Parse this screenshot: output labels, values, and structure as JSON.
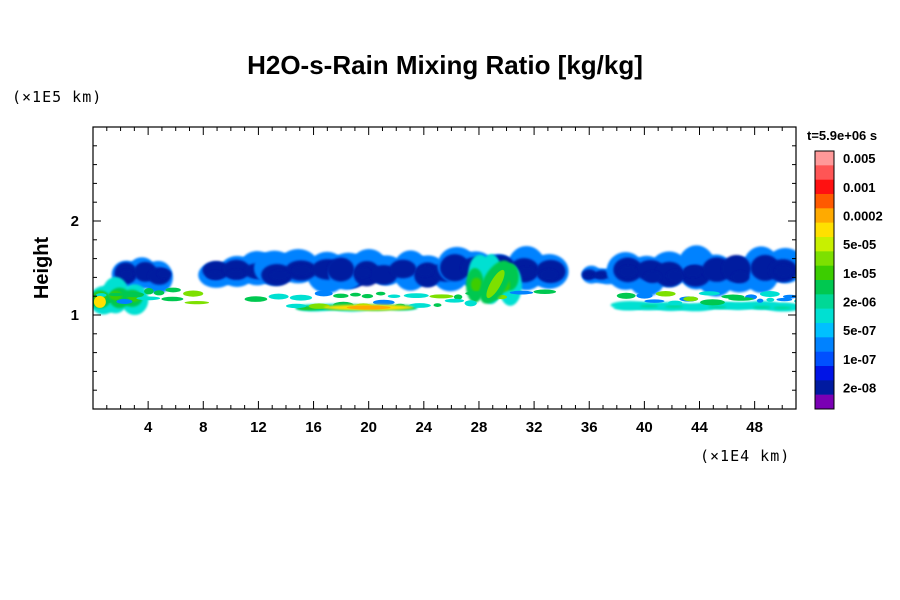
{
  "chart_data": {
    "type": "heatmap",
    "title": "H2O-s-Rain Mixing Ratio [kg/kg]",
    "ylabel": "Height",
    "x_unit": "(×1E4 km)",
    "y_unit": "(×1E5 km)",
    "time_label": "t=5.9e+06 s",
    "x_ticks": [
      "4",
      "8",
      "12",
      "16",
      "20",
      "24",
      "28",
      "32",
      "36",
      "40",
      "44",
      "48"
    ],
    "x_tick_values": [
      4,
      8,
      12,
      16,
      20,
      24,
      28,
      32,
      36,
      40,
      44,
      48
    ],
    "y_ticks": [
      "1",
      "2"
    ],
    "y_tick_values": [
      1,
      2
    ],
    "xlim": [
      0,
      51
    ],
    "ylim": [
      0,
      3
    ],
    "colorbar": {
      "labels": [
        "0.005",
        "0.001",
        "0.0002",
        "5e-05",
        "1e-05",
        "2e-06",
        "5e-07",
        "1e-07",
        "2e-08"
      ],
      "colors_top_to_bottom": [
        "#ff9999",
        "#ff5555",
        "#ff1111",
        "#ff5a00",
        "#ffaa00",
        "#ffe000",
        "#c8f000",
        "#7de000",
        "#3ccd00",
        "#00c850",
        "#00d896",
        "#00e0d2",
        "#00c0ff",
        "#0082ff",
        "#0050ff",
        "#0014e6",
        "#001aa0",
        "#7a00b4"
      ]
    },
    "regions": [
      {
        "x": [
          1.8,
          5.6
        ],
        "y": [
          1.29,
          1.54
        ],
        "level": "1e-07"
      },
      {
        "x": [
          8.2,
          12.8
        ],
        "y": [
          1.33,
          1.56
        ],
        "level": "1e-07"
      },
      {
        "x": [
          12.5,
          19.5
        ],
        "y": [
          1.3,
          1.58
        ],
        "level": "1e-07"
      },
      {
        "x": [
          17.5,
          26.5
        ],
        "y": [
          1.3,
          1.58
        ],
        "level": "1e-07"
      },
      {
        "x": [
          25.5,
          33.8
        ],
        "y": [
          1.3,
          1.6
        ],
        "level": "1e-07"
      },
      {
        "x": [
          35.5,
          38.0
        ],
        "y": [
          1.36,
          1.48
        ],
        "level": "1e-07"
      },
      {
        "x": [
          38.0,
          51.0
        ],
        "y": [
          1.28,
          1.6
        ],
        "level": "1e-07"
      },
      {
        "x": [
          15.0,
          23.0
        ],
        "y": [
          1.05,
          1.1
        ],
        "level": "1e-05"
      },
      {
        "x": [
          18.0,
          21.5
        ],
        "y": [
          1.06,
          1.09
        ],
        "level": "5e-05"
      },
      {
        "x": [
          27.5,
          30.5
        ],
        "y": [
          1.15,
          1.52
        ],
        "level": "1e-05"
      },
      {
        "x": [
          38.0,
          51.0
        ],
        "y": [
          1.05,
          1.12
        ],
        "level": "2e-06"
      },
      {
        "x": [
          0.0,
          3.5
        ],
        "y": [
          1.05,
          1.3
        ],
        "level": "1e-05"
      }
    ]
  }
}
